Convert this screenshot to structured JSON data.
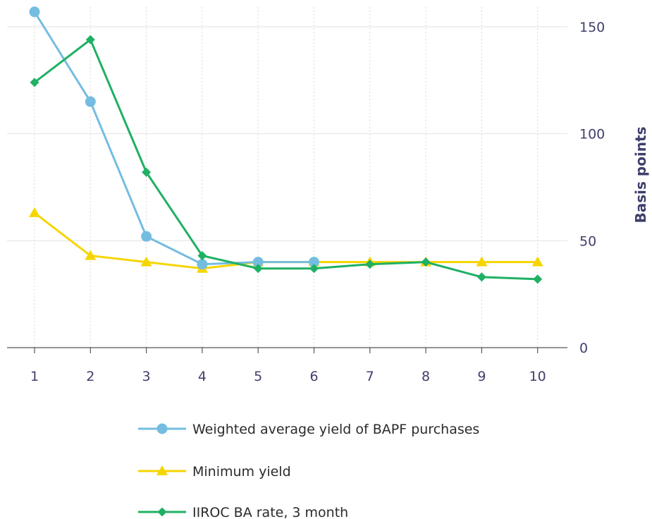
{
  "chart_data": {
    "type": "line",
    "x": [
      1,
      2,
      3,
      4,
      5,
      6,
      7,
      8,
      9,
      10
    ],
    "ylabel": "Basis points",
    "xlabel": "",
    "ylim": [
      0,
      160
    ],
    "yticks": [
      0,
      50,
      100,
      150
    ],
    "grid": "vertical dotted",
    "legend": "bottom",
    "series": [
      {
        "name": "Weighted average yield of BAPF purchases",
        "color": "#74bde0",
        "marker": "circle",
        "x": [
          1,
          2,
          3,
          4,
          5,
          6
        ],
        "values": [
          157,
          115,
          52,
          39,
          40,
          40
        ]
      },
      {
        "name": "Minimum yield",
        "color": "#f5d500",
        "marker": "triangle",
        "x": [
          1,
          2,
          3,
          4,
          5,
          6,
          7,
          8,
          9,
          10
        ],
        "values": [
          63,
          43,
          40,
          37,
          40,
          40,
          40,
          40,
          40,
          40
        ]
      },
      {
        "name": "IIROC BA rate, 3 month",
        "color": "#1fb064",
        "marker": "diamond",
        "x": [
          1,
          2,
          3,
          4,
          5,
          6,
          7,
          8,
          9,
          10
        ],
        "values": [
          124,
          144,
          82,
          43,
          37,
          37,
          39,
          40,
          33,
          32
        ]
      }
    ]
  }
}
